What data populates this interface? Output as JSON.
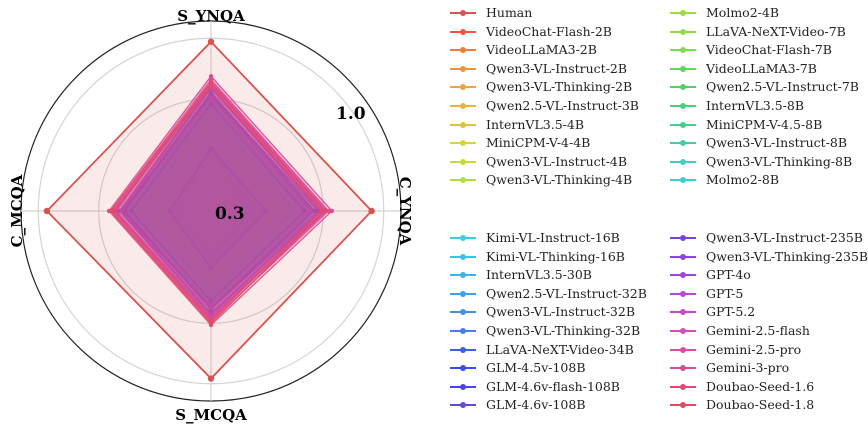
{
  "chart_data": {
    "type": "radar",
    "axes": [
      "S_YNQA",
      "C_YNQA",
      "S_MCQA",
      "C_MCQA"
    ],
    "range": [
      0,
      1.1
    ],
    "tick_labels": [
      "0.3",
      "1.0"
    ],
    "human": {
      "name": "Human",
      "color": "#d9534f",
      "values": [
        0.98,
        0.93,
        0.97,
        0.95
      ]
    },
    "series": [
      {
        "name": "VideoChat-Flash-2B",
        "color": "#e9573f",
        "values": [
          0.52,
          0.41,
          0.39,
          0.33
        ]
      },
      {
        "name": "VideoLLaMA3-2B",
        "color": "#f07c35",
        "values": [
          0.53,
          0.44,
          0.42,
          0.36
        ]
      },
      {
        "name": "Qwen3-VL-Instruct-2B",
        "color": "#f0943a",
        "values": [
          0.55,
          0.47,
          0.44,
          0.38
        ]
      },
      {
        "name": "Qwen3-VL-Thinking-2B",
        "color": "#efa43c",
        "values": [
          0.54,
          0.45,
          0.43,
          0.37
        ]
      },
      {
        "name": "Qwen2.5-VL-Instruct-3B",
        "color": "#e8b33b",
        "values": [
          0.5,
          0.38,
          0.4,
          0.3
        ]
      },
      {
        "name": "InternVL3.5-4B",
        "color": "#e0c43c",
        "values": [
          0.56,
          0.43,
          0.46,
          0.39
        ]
      },
      {
        "name": "MiniCPM-V-4-4B",
        "color": "#d6d63a",
        "values": [
          0.48,
          0.36,
          0.38,
          0.29
        ]
      },
      {
        "name": "Qwen3-VL-Instruct-4B",
        "color": "#c3dc3c",
        "values": [
          0.58,
          0.49,
          0.47,
          0.41
        ]
      },
      {
        "name": "Qwen3-VL-Thinking-4B",
        "color": "#b2de3d",
        "values": [
          0.57,
          0.48,
          0.46,
          0.4
        ]
      },
      {
        "name": "Molmo2-4B",
        "color": "#9fdc3e",
        "values": [
          0.51,
          0.22,
          0.24,
          0.28
        ]
      },
      {
        "name": "LLaVA-NeXT-Video-7B",
        "color": "#8ddd45",
        "values": [
          0.4,
          0.2,
          0.25,
          0.2
        ]
      },
      {
        "name": "VideoChat-Flash-7B",
        "color": "#79dc4d",
        "values": [
          0.55,
          0.46,
          0.44,
          0.37
        ]
      },
      {
        "name": "VideoLLaMA3-7B",
        "color": "#5fd855",
        "values": [
          0.57,
          0.49,
          0.46,
          0.4
        ]
      },
      {
        "name": "Qwen2.5-VL-Instruct-7B",
        "color": "#4fd565",
        "values": [
          0.58,
          0.5,
          0.48,
          0.41
        ]
      },
      {
        "name": "InternVL3.5-8B",
        "color": "#44d27c",
        "values": [
          0.63,
          0.56,
          0.52,
          0.46
        ]
      },
      {
        "name": "MiniCPM-V-4.5-8B",
        "color": "#40d090",
        "values": [
          0.61,
          0.53,
          0.5,
          0.44
        ]
      },
      {
        "name": "Qwen3-VL-Instruct-8B",
        "color": "#3fd0a6",
        "values": [
          0.66,
          0.58,
          0.54,
          0.48
        ]
      },
      {
        "name": "Qwen3-VL-Thinking-8B",
        "color": "#3dd0bb",
        "values": [
          0.65,
          0.56,
          0.53,
          0.47
        ]
      },
      {
        "name": "Molmo2-8B",
        "color": "#3dcfcd",
        "values": [
          0.53,
          0.24,
          0.26,
          0.3
        ]
      },
      {
        "name": "Kimi-VL-Instruct-16B",
        "color": "#3bcde0",
        "values": [
          0.6,
          0.5,
          0.48,
          0.42
        ]
      },
      {
        "name": "Kimi-VL-Thinking-16B",
        "color": "#3cc2e6",
        "values": [
          0.59,
          0.49,
          0.47,
          0.41
        ]
      },
      {
        "name": "InternVL3.5-30B",
        "color": "#3eb2e6",
        "values": [
          0.66,
          0.57,
          0.55,
          0.49
        ]
      },
      {
        "name": "Qwen2.5-VL-Instruct-32B",
        "color": "#40a1e6",
        "values": [
          0.64,
          0.55,
          0.53,
          0.47
        ]
      },
      {
        "name": "Qwen3-VL-Instruct-32B",
        "color": "#428fe6",
        "values": [
          0.69,
          0.6,
          0.57,
          0.51
        ]
      },
      {
        "name": "Qwen3-VL-Thinking-32B",
        "color": "#447ee6",
        "values": [
          0.68,
          0.59,
          0.56,
          0.5
        ]
      },
      {
        "name": "LLaVA-NeXT-Video-34B",
        "color": "#3a5fe0",
        "values": [
          0.36,
          0.32,
          0.33,
          0.24
        ]
      },
      {
        "name": "GLM-4.5v-108B",
        "color": "#3a4ee0",
        "values": [
          0.67,
          0.6,
          0.56,
          0.5
        ]
      },
      {
        "name": "GLM-4.6v-flash-108B",
        "color": "#4a47df",
        "values": [
          0.62,
          0.54,
          0.52,
          0.46
        ]
      },
      {
        "name": "GLM-4.6v-108B",
        "color": "#6246de",
        "values": [
          0.68,
          0.62,
          0.57,
          0.51
        ]
      },
      {
        "name": "Qwen3-VL-Instruct-235B",
        "color": "#7944dc",
        "values": [
          0.72,
          0.64,
          0.6,
          0.53
        ]
      },
      {
        "name": "Qwen3-VL-Thinking-235B",
        "color": "#8f44db",
        "values": [
          0.71,
          0.63,
          0.59,
          0.52
        ]
      },
      {
        "name": "GPT-4o",
        "color": "#a344d9",
        "values": [
          0.66,
          0.58,
          0.56,
          0.52
        ]
      },
      {
        "name": "GPT-5",
        "color": "#b847d7",
        "values": [
          0.74,
          0.66,
          0.61,
          0.55
        ]
      },
      {
        "name": "GPT-5.2",
        "color": "#cb47cf",
        "values": [
          0.75,
          0.67,
          0.62,
          0.56
        ]
      },
      {
        "name": "Gemini-2.5-flash",
        "color": "#d64bbd",
        "values": [
          0.73,
          0.65,
          0.63,
          0.57
        ]
      },
      {
        "name": "Gemini-2.5-pro",
        "color": "#dc4aa8",
        "values": [
          0.76,
          0.68,
          0.64,
          0.58
        ]
      },
      {
        "name": "Gemini-3-pro",
        "color": "#de4a90",
        "values": [
          0.78,
          0.7,
          0.66,
          0.59
        ]
      },
      {
        "name": "Doubao-Seed-1.6",
        "color": "#e04a78",
        "values": [
          0.72,
          0.64,
          0.63,
          0.56
        ]
      },
      {
        "name": "Doubao-Seed-1.8",
        "color": "#e44a62",
        "values": [
          0.74,
          0.66,
          0.65,
          0.58
        ]
      }
    ],
    "legend": {
      "groups": [
        {
          "columns": [
            [
              "Human",
              "VideoChat-Flash-2B",
              "VideoLLaMA3-2B",
              "Qwen3-VL-Instruct-2B",
              "Qwen3-VL-Thinking-2B",
              "Qwen2.5-VL-Instruct-3B",
              "InternVL3.5-4B",
              "MiniCPM-V-4-4B",
              "Qwen3-VL-Instruct-4B",
              "Qwen3-VL-Thinking-4B"
            ],
            [
              "Molmo2-4B",
              "LLaVA-NeXT-Video-7B",
              "VideoChat-Flash-7B",
              "VideoLLaMA3-7B",
              "Qwen2.5-VL-Instruct-7B",
              "InternVL3.5-8B",
              "MiniCPM-V-4.5-8B",
              "Qwen3-VL-Instruct-8B",
              "Qwen3-VL-Thinking-8B",
              "Molmo2-8B"
            ]
          ]
        },
        {
          "columns": [
            [
              "Kimi-VL-Instruct-16B",
              "Kimi-VL-Thinking-16B",
              "InternVL3.5-30B",
              "Qwen2.5-VL-Instruct-32B",
              "Qwen3-VL-Instruct-32B",
              "Qwen3-VL-Thinking-32B",
              "LLaVA-NeXT-Video-34B",
              "GLM-4.5v-108B",
              "GLM-4.6v-flash-108B",
              "GLM-4.6v-108B"
            ],
            [
              "Qwen3-VL-Instruct-235B",
              "Qwen3-VL-Thinking-235B",
              "GPT-4o",
              "GPT-5",
              "GPT-5.2",
              "Gemini-2.5-flash",
              "Gemini-2.5-pro",
              "Gemini-3-pro",
              "Doubao-Seed-1.6",
              "Doubao-Seed-1.8"
            ]
          ]
        }
      ]
    }
  }
}
